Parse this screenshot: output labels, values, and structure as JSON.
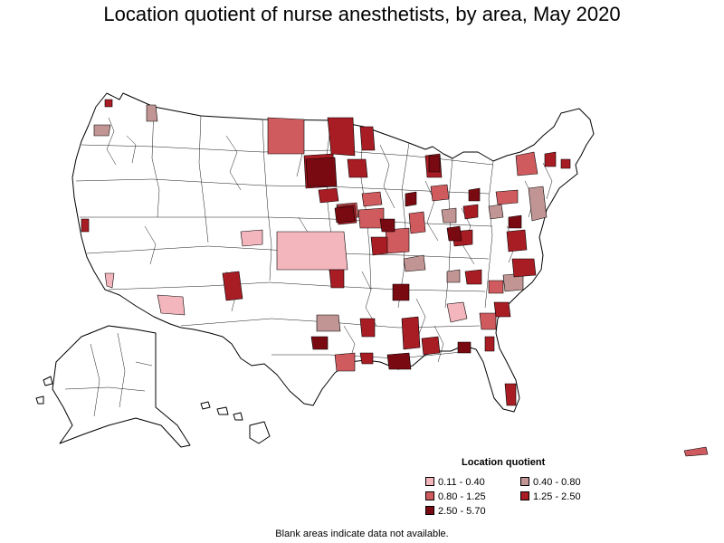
{
  "title": "Location quotient of nurse anesthetists, by area, May 2020",
  "legend": {
    "title": "Location quotient",
    "items": [
      {
        "label": "0.11 - 0.40",
        "color": "#f4b6bd"
      },
      {
        "label": "0.40 - 0.80",
        "color": "#c19593"
      },
      {
        "label": "0.80 - 1.25",
        "color": "#d05b5f"
      },
      {
        "label": "1.25 - 2.50",
        "color": "#a81c24"
      },
      {
        "label": "2.50 - 5.70",
        "color": "#7a0a12"
      }
    ]
  },
  "footnote": "Blank areas indicate data not available.",
  "colors": {
    "background": "#ffffff",
    "no_data": "#ffffff",
    "border": "#000000"
  },
  "map_data": {
    "type": "choropleth",
    "unit": "location quotient",
    "classes": [
      "0.11 - 0.40",
      "0.40 - 0.80",
      "0.80 - 1.25",
      "1.25 - 2.50",
      "2.50 - 5.70"
    ]
  }
}
